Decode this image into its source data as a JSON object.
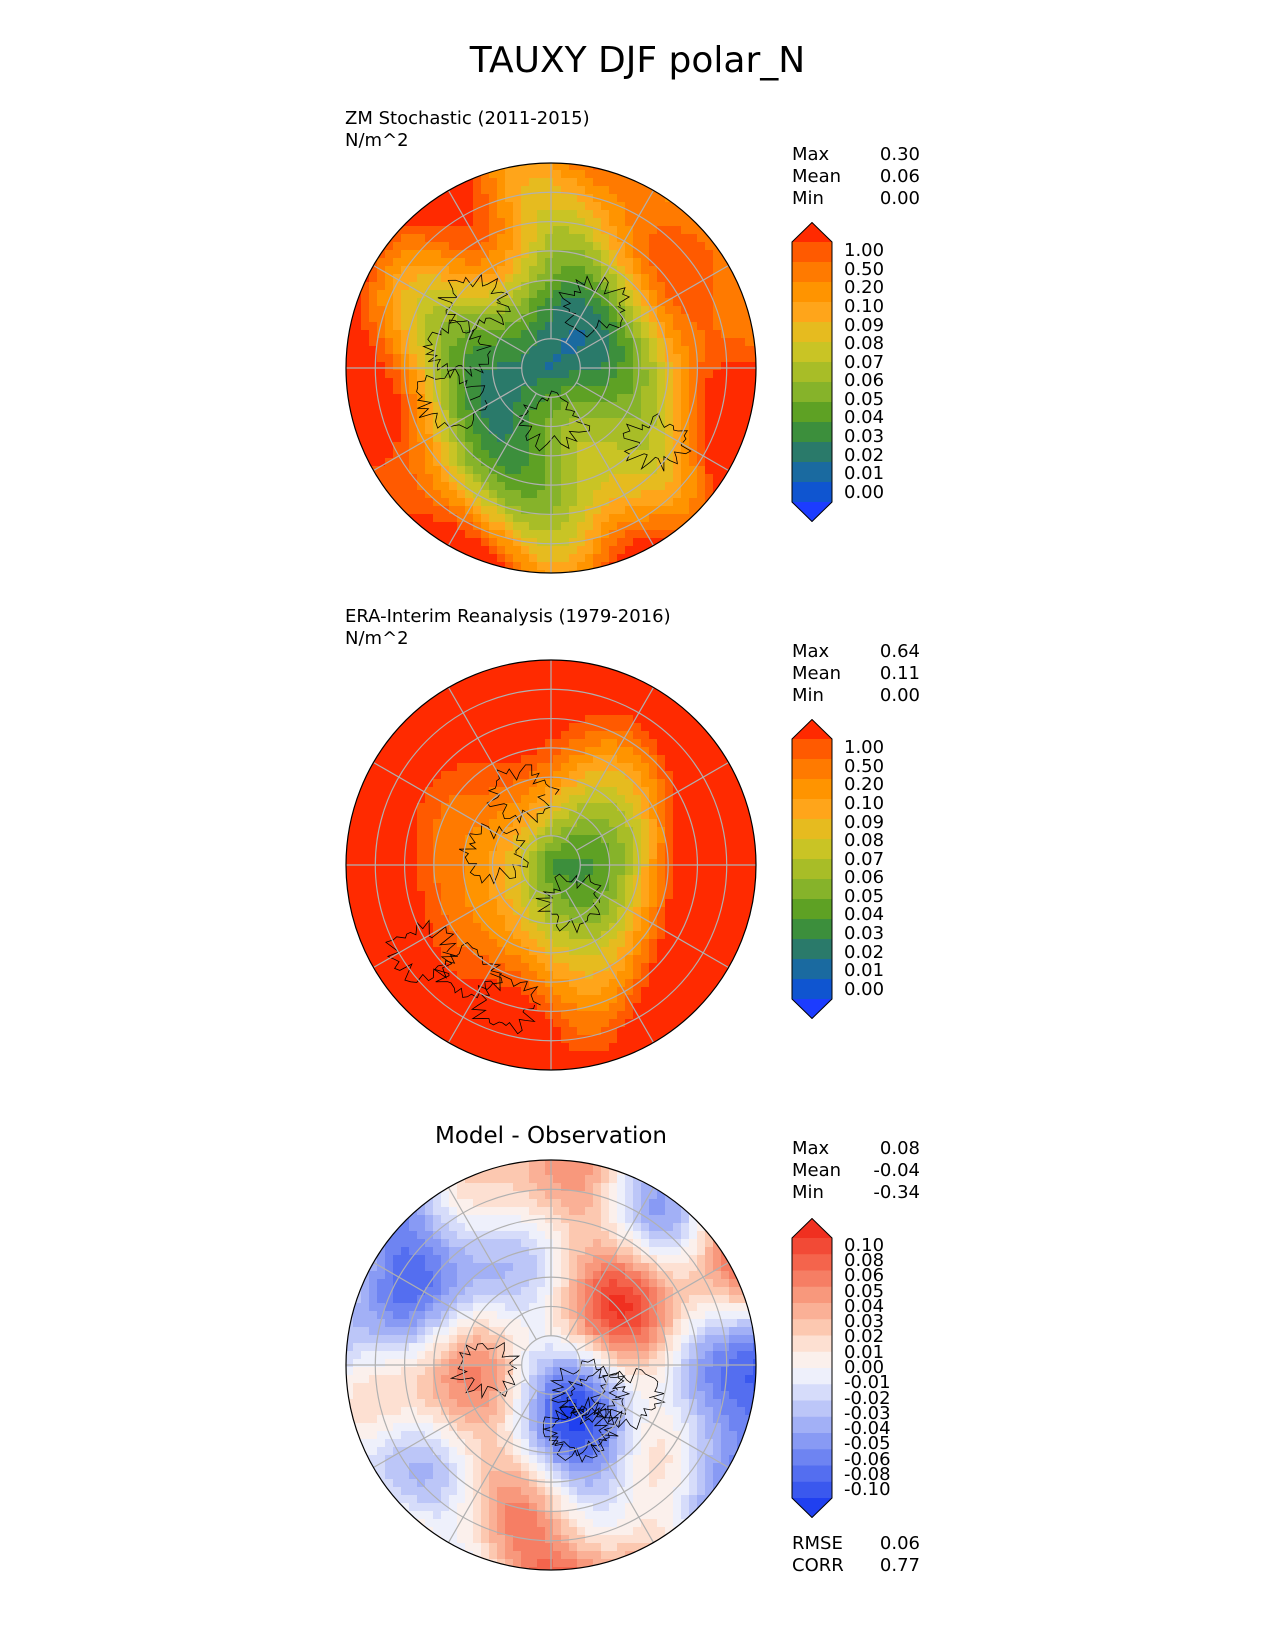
{
  "title": "TAUXY DJF polar_N",
  "panels": [
    {
      "id": "test",
      "title": "ZM Stochastic (2011-2015)",
      "units": "N/m^2",
      "stats": [
        {
          "label": "Max",
          "value": "0.30"
        },
        {
          "label": "Mean",
          "value": "0.06"
        },
        {
          "label": "Min",
          "value": "0.00"
        }
      ],
      "colorbar": {
        "levels": [
          "1.00",
          "0.50",
          "0.20",
          "0.10",
          "0.09",
          "0.08",
          "0.07",
          "0.06",
          "0.05",
          "0.04",
          "0.03",
          "0.02",
          "0.01",
          "0.00"
        ],
        "colors": [
          "#ff2a00",
          "#ff5a00",
          "#ff7a00",
          "#ff9400",
          "#ffa51a",
          "#e6bb1f",
          "#c9c425",
          "#a8bd27",
          "#86b32a",
          "#5ea124",
          "#3c8f3c",
          "#2a7a6a",
          "#1a6aa0",
          "#0f55d0",
          "#1c3cff"
        ]
      }
    },
    {
      "id": "ref",
      "title": "ERA-Interim Reanalysis (1979-2016)",
      "units": "N/m^2",
      "stats": [
        {
          "label": "Max",
          "value": "0.64"
        },
        {
          "label": "Mean",
          "value": "0.11"
        },
        {
          "label": "Min",
          "value": "0.00"
        }
      ],
      "colorbar": {
        "levels": [
          "1.00",
          "0.50",
          "0.20",
          "0.10",
          "0.09",
          "0.08",
          "0.07",
          "0.06",
          "0.05",
          "0.04",
          "0.03",
          "0.02",
          "0.01",
          "0.00"
        ],
        "colors": [
          "#ff2a00",
          "#ff5a00",
          "#ff7a00",
          "#ff9400",
          "#ffa51a",
          "#e6bb1f",
          "#c9c425",
          "#a8bd27",
          "#86b32a",
          "#5ea124",
          "#3c8f3c",
          "#2a7a6a",
          "#1a6aa0",
          "#0f55d0",
          "#1c3cff"
        ]
      }
    },
    {
      "id": "diff",
      "title": "Model - Observation",
      "stats": [
        {
          "label": "Max",
          "value": "0.08"
        },
        {
          "label": "Mean",
          "value": "-0.04"
        },
        {
          "label": "Min",
          "value": "-0.34"
        }
      ],
      "colorbar": {
        "levels": [
          "0.10",
          "0.08",
          "0.06",
          "0.05",
          "0.04",
          "0.03",
          "0.02",
          "0.01",
          "0.00",
          "-0.01",
          "-0.02",
          "-0.03",
          "-0.04",
          "-0.05",
          "-0.06",
          "-0.08",
          "-0.10"
        ],
        "colors": [
          "#f03020",
          "#f24a36",
          "#f4644c",
          "#f67e64",
          "#f8987c",
          "#fab096",
          "#fcc8b0",
          "#fde0d2",
          "#fbf0ec",
          "#eef0fb",
          "#d6dcfa",
          "#bcc6f8",
          "#a2b0f6",
          "#889af4",
          "#6e84f2",
          "#546ef0",
          "#3a58ee",
          "#2040f0"
        ]
      },
      "metrics": [
        {
          "label": "RMSE",
          "value": "0.06"
        },
        {
          "label": "CORR",
          "value": "0.77"
        }
      ]
    }
  ]
}
